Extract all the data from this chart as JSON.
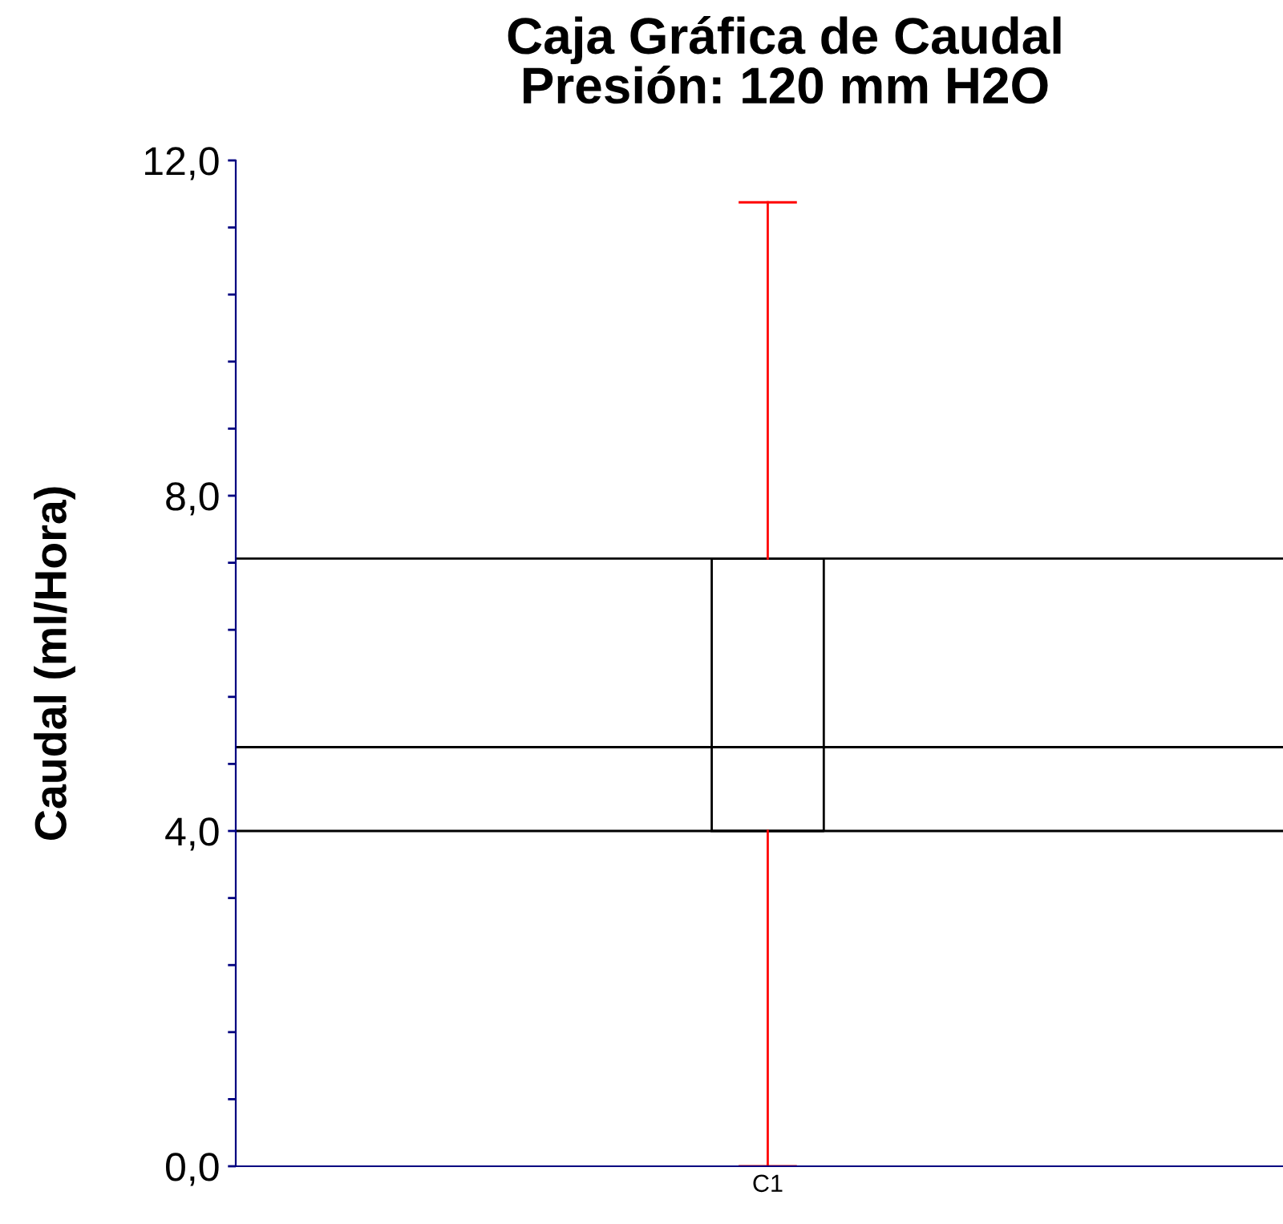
{
  "chart_data": {
    "type": "box",
    "title": "Caja Gráfica de Caudal\nPresión: 120 mm H2O",
    "ylabel": "Caudal (ml/Hora)",
    "categories": [
      "C1"
    ],
    "series": [
      {
        "color": "#ff0000",
        "colors": [
          "#000000"
        ],
        "boxes": [
          {
            "low": 0,
            "q1": 4.0,
            "median": 5.0,
            "q3": 7.25,
            "high": 11.5
          }
        ]
      }
    ],
    "ylim": [
      0,
      12
    ],
    "yticks": [
      {
        "value": 0,
        "label": "0,0"
      },
      {
        "value": 0.8,
        "label": null
      },
      {
        "value": 1.6,
        "label": null
      },
      {
        "value": 2.4,
        "label": null
      },
      {
        "value": 3.2,
        "label": null
      },
      {
        "value": 4,
        "label": "4,0"
      },
      {
        "value": 4.8,
        "label": null
      },
      {
        "value": 5.6,
        "label": null
      },
      {
        "value": 6.4,
        "label": null
      },
      {
        "value": 7.2,
        "label": null
      },
      {
        "value": 8,
        "label": "8,0"
      },
      {
        "value": 8.8,
        "label": null
      },
      {
        "value": 9.6,
        "label": null
      },
      {
        "value": 10.4,
        "label": null
      },
      {
        "value": 11.2,
        "label": null
      },
      {
        "value": 12,
        "label": "12,0"
      }
    ],
    "ref_lines": [
      {
        "axis": "y",
        "value": 7.25,
        "color": "#000000"
      },
      {
        "axis": "y",
        "value": 5.0,
        "color": "#000000"
      },
      {
        "axis": "y",
        "value": 4.0,
        "color": "#000000"
      }
    ],
    "grid": false,
    "legend": false
  }
}
